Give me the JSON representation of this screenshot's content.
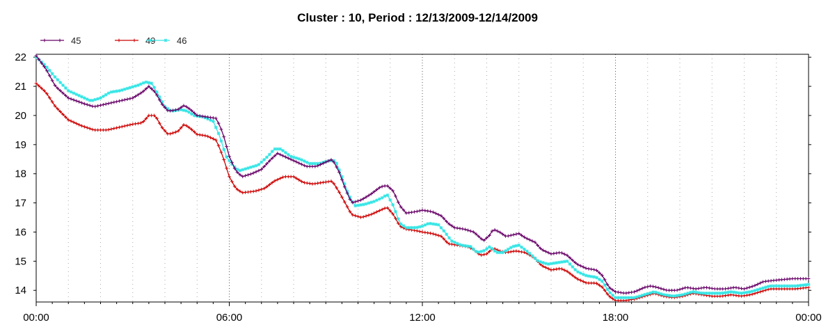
{
  "chart_data": {
    "type": "line",
    "title": "Cluster : 10, Period : 12/13/2009-12/14/2009",
    "xlabel": "",
    "ylabel": "",
    "x_range_hours": [
      0,
      24
    ],
    "x_ticks": [
      {
        "hour": 0,
        "label": "00:00"
      },
      {
        "hour": 6,
        "label": "06:00"
      },
      {
        "hour": 12,
        "label": "12:00"
      },
      {
        "hour": 18,
        "label": "18:00"
      },
      {
        "hour": 24,
        "label": "00:00"
      }
    ],
    "ylim": [
      13.6,
      22.1
    ],
    "y_ticks": [
      14,
      15,
      16,
      17,
      18,
      19,
      20,
      21,
      22
    ],
    "grid": "dotted",
    "legend_position": "top-left",
    "series": [
      {
        "name": "45",
        "color": "#660066",
        "marker": "plus",
        "points": [
          [
            0,
            22.05
          ],
          [
            0.3,
            21.6
          ],
          [
            0.6,
            21.0
          ],
          [
            1.0,
            20.6
          ],
          [
            1.5,
            20.4
          ],
          [
            1.8,
            20.3
          ],
          [
            2.2,
            20.4
          ],
          [
            2.6,
            20.5
          ],
          [
            3.0,
            20.6
          ],
          [
            3.3,
            20.8
          ],
          [
            3.5,
            21.0
          ],
          [
            3.7,
            20.8
          ],
          [
            3.9,
            20.4
          ],
          [
            4.1,
            20.15
          ],
          [
            4.4,
            20.2
          ],
          [
            4.6,
            20.35
          ],
          [
            4.8,
            20.2
          ],
          [
            5.0,
            20.0
          ],
          [
            5.3,
            19.95
          ],
          [
            5.6,
            19.9
          ],
          [
            5.8,
            19.4
          ],
          [
            6.0,
            18.6
          ],
          [
            6.2,
            18.1
          ],
          [
            6.4,
            17.9
          ],
          [
            6.7,
            18.0
          ],
          [
            7.0,
            18.15
          ],
          [
            7.3,
            18.5
          ],
          [
            7.5,
            18.7
          ],
          [
            7.8,
            18.55
          ],
          [
            8.1,
            18.4
          ],
          [
            8.4,
            18.25
          ],
          [
            8.7,
            18.25
          ],
          [
            9.0,
            18.4
          ],
          [
            9.2,
            18.5
          ],
          [
            9.4,
            18.1
          ],
          [
            9.6,
            17.5
          ],
          [
            9.8,
            17.0
          ],
          [
            10.1,
            17.1
          ],
          [
            10.4,
            17.3
          ],
          [
            10.7,
            17.55
          ],
          [
            10.9,
            17.6
          ],
          [
            11.1,
            17.4
          ],
          [
            11.3,
            16.9
          ],
          [
            11.5,
            16.65
          ],
          [
            11.8,
            16.7
          ],
          [
            12.0,
            16.75
          ],
          [
            12.3,
            16.7
          ],
          [
            12.6,
            16.55
          ],
          [
            12.8,
            16.3
          ],
          [
            13.0,
            16.15
          ],
          [
            13.3,
            16.1
          ],
          [
            13.6,
            16.0
          ],
          [
            13.8,
            15.8
          ],
          [
            13.9,
            15.7
          ],
          [
            14.1,
            15.9
          ],
          [
            14.2,
            16.1
          ],
          [
            14.4,
            16.0
          ],
          [
            14.6,
            15.85
          ],
          [
            14.8,
            15.9
          ],
          [
            15.0,
            15.95
          ],
          [
            15.2,
            15.8
          ],
          [
            15.5,
            15.65
          ],
          [
            15.7,
            15.4
          ],
          [
            16.0,
            15.25
          ],
          [
            16.3,
            15.3
          ],
          [
            16.5,
            15.2
          ],
          [
            16.8,
            14.9
          ],
          [
            17.1,
            14.75
          ],
          [
            17.4,
            14.7
          ],
          [
            17.6,
            14.5
          ],
          [
            17.8,
            14.1
          ],
          [
            18.0,
            13.95
          ],
          [
            18.3,
            13.9
          ],
          [
            18.6,
            13.95
          ],
          [
            18.9,
            14.1
          ],
          [
            19.1,
            14.15
          ],
          [
            19.3,
            14.1
          ],
          [
            19.6,
            14.0
          ],
          [
            19.9,
            14.0
          ],
          [
            20.2,
            14.1
          ],
          [
            20.5,
            14.05
          ],
          [
            20.8,
            14.1
          ],
          [
            21.1,
            14.05
          ],
          [
            21.4,
            14.05
          ],
          [
            21.7,
            14.1
          ],
          [
            22.0,
            14.05
          ],
          [
            22.3,
            14.15
          ],
          [
            22.6,
            14.3
          ],
          [
            23.0,
            14.35
          ],
          [
            23.5,
            14.4
          ],
          [
            24.0,
            14.4
          ]
        ]
      },
      {
        "name": "49",
        "color": "#cc0000",
        "marker": "plus",
        "points": [
          [
            0,
            21.1
          ],
          [
            0.3,
            20.8
          ],
          [
            0.6,
            20.3
          ],
          [
            1.0,
            19.85
          ],
          [
            1.4,
            19.65
          ],
          [
            1.8,
            19.5
          ],
          [
            2.2,
            19.5
          ],
          [
            2.6,
            19.6
          ],
          [
            3.0,
            19.7
          ],
          [
            3.3,
            19.75
          ],
          [
            3.5,
            20.0
          ],
          [
            3.7,
            20.0
          ],
          [
            3.9,
            19.6
          ],
          [
            4.1,
            19.35
          ],
          [
            4.4,
            19.45
          ],
          [
            4.6,
            19.7
          ],
          [
            4.8,
            19.55
          ],
          [
            5.0,
            19.35
          ],
          [
            5.3,
            19.3
          ],
          [
            5.6,
            19.15
          ],
          [
            5.8,
            18.6
          ],
          [
            6.0,
            17.9
          ],
          [
            6.2,
            17.5
          ],
          [
            6.4,
            17.35
          ],
          [
            6.8,
            17.4
          ],
          [
            7.1,
            17.5
          ],
          [
            7.4,
            17.75
          ],
          [
            7.7,
            17.9
          ],
          [
            8.0,
            17.9
          ],
          [
            8.3,
            17.7
          ],
          [
            8.6,
            17.65
          ],
          [
            8.9,
            17.7
          ],
          [
            9.2,
            17.75
          ],
          [
            9.4,
            17.4
          ],
          [
            9.6,
            17.0
          ],
          [
            9.8,
            16.6
          ],
          [
            10.1,
            16.5
          ],
          [
            10.4,
            16.6
          ],
          [
            10.7,
            16.75
          ],
          [
            10.9,
            16.85
          ],
          [
            11.1,
            16.6
          ],
          [
            11.3,
            16.2
          ],
          [
            11.5,
            16.1
          ],
          [
            11.8,
            16.05
          ],
          [
            12.0,
            16.0
          ],
          [
            12.3,
            15.95
          ],
          [
            12.6,
            15.85
          ],
          [
            12.8,
            15.6
          ],
          [
            13.1,
            15.55
          ],
          [
            13.4,
            15.5
          ],
          [
            13.6,
            15.4
          ],
          [
            13.8,
            15.2
          ],
          [
            14.0,
            15.25
          ],
          [
            14.2,
            15.45
          ],
          [
            14.4,
            15.35
          ],
          [
            14.6,
            15.3
          ],
          [
            14.9,
            15.35
          ],
          [
            15.2,
            15.3
          ],
          [
            15.5,
            15.1
          ],
          [
            15.7,
            14.85
          ],
          [
            16.0,
            14.7
          ],
          [
            16.3,
            14.75
          ],
          [
            16.5,
            14.65
          ],
          [
            16.8,
            14.4
          ],
          [
            17.1,
            14.25
          ],
          [
            17.4,
            14.25
          ],
          [
            17.6,
            14.1
          ],
          [
            17.8,
            13.8
          ],
          [
            18.0,
            13.65
          ],
          [
            18.3,
            13.65
          ],
          [
            18.6,
            13.7
          ],
          [
            18.9,
            13.8
          ],
          [
            19.2,
            13.9
          ],
          [
            19.5,
            13.8
          ],
          [
            19.8,
            13.75
          ],
          [
            20.1,
            13.8
          ],
          [
            20.4,
            13.9
          ],
          [
            20.7,
            13.85
          ],
          [
            21.0,
            13.8
          ],
          [
            21.3,
            13.8
          ],
          [
            21.6,
            13.85
          ],
          [
            21.9,
            13.8
          ],
          [
            22.2,
            13.85
          ],
          [
            22.5,
            13.95
          ],
          [
            22.8,
            14.05
          ],
          [
            23.2,
            14.05
          ],
          [
            23.6,
            14.05
          ],
          [
            24.0,
            14.1
          ]
        ]
      },
      {
        "name": "46",
        "color": "#33e5e5",
        "marker": "star",
        "points": [
          [
            0,
            22.0
          ],
          [
            0.3,
            21.7
          ],
          [
            0.6,
            21.3
          ],
          [
            1.0,
            20.85
          ],
          [
            1.4,
            20.65
          ],
          [
            1.7,
            20.5
          ],
          [
            2.0,
            20.6
          ],
          [
            2.3,
            20.8
          ],
          [
            2.6,
            20.85
          ],
          [
            2.9,
            20.95
          ],
          [
            3.2,
            21.05
          ],
          [
            3.4,
            21.15
          ],
          [
            3.6,
            21.1
          ],
          [
            3.8,
            20.7
          ],
          [
            4.0,
            20.3
          ],
          [
            4.2,
            20.15
          ],
          [
            4.5,
            20.2
          ],
          [
            4.7,
            20.15
          ],
          [
            4.9,
            20.0
          ],
          [
            5.2,
            19.95
          ],
          [
            5.5,
            19.8
          ],
          [
            5.7,
            19.3
          ],
          [
            5.9,
            18.6
          ],
          [
            6.1,
            18.3
          ],
          [
            6.3,
            18.1
          ],
          [
            6.6,
            18.2
          ],
          [
            6.9,
            18.3
          ],
          [
            7.2,
            18.6
          ],
          [
            7.4,
            18.85
          ],
          [
            7.6,
            18.85
          ],
          [
            7.9,
            18.6
          ],
          [
            8.2,
            18.5
          ],
          [
            8.5,
            18.35
          ],
          [
            8.8,
            18.35
          ],
          [
            9.1,
            18.45
          ],
          [
            9.3,
            18.45
          ],
          [
            9.5,
            17.9
          ],
          [
            9.7,
            17.3
          ],
          [
            9.9,
            16.9
          ],
          [
            10.2,
            16.95
          ],
          [
            10.5,
            17.05
          ],
          [
            10.8,
            17.2
          ],
          [
            10.9,
            17.3
          ],
          [
            11.1,
            16.9
          ],
          [
            11.3,
            16.3
          ],
          [
            11.5,
            16.15
          ],
          [
            11.8,
            16.15
          ],
          [
            12.0,
            16.2
          ],
          [
            12.2,
            16.3
          ],
          [
            12.5,
            16.25
          ],
          [
            12.7,
            16.0
          ],
          [
            12.9,
            15.7
          ],
          [
            13.2,
            15.55
          ],
          [
            13.5,
            15.5
          ],
          [
            13.7,
            15.3
          ],
          [
            13.9,
            15.35
          ],
          [
            14.1,
            15.5
          ],
          [
            14.3,
            15.3
          ],
          [
            14.5,
            15.3
          ],
          [
            14.8,
            15.5
          ],
          [
            15.0,
            15.55
          ],
          [
            15.3,
            15.3
          ],
          [
            15.6,
            15.0
          ],
          [
            15.9,
            14.9
          ],
          [
            16.2,
            14.95
          ],
          [
            16.5,
            15.0
          ],
          [
            16.8,
            14.65
          ],
          [
            17.1,
            14.5
          ],
          [
            17.4,
            14.45
          ],
          [
            17.6,
            14.3
          ],
          [
            17.8,
            13.95
          ],
          [
            18.0,
            13.75
          ],
          [
            18.3,
            13.75
          ],
          [
            18.6,
            13.75
          ],
          [
            18.9,
            13.85
          ],
          [
            19.2,
            13.95
          ],
          [
            19.5,
            13.85
          ],
          [
            19.8,
            13.8
          ],
          [
            20.1,
            13.85
          ],
          [
            20.4,
            13.95
          ],
          [
            20.7,
            13.9
          ],
          [
            21.0,
            13.9
          ],
          [
            21.3,
            13.9
          ],
          [
            21.6,
            13.95
          ],
          [
            21.9,
            13.9
          ],
          [
            22.2,
            13.95
          ],
          [
            22.5,
            14.05
          ],
          [
            22.8,
            14.15
          ],
          [
            23.2,
            14.15
          ],
          [
            23.6,
            14.15
          ],
          [
            24.0,
            14.2
          ]
        ]
      }
    ]
  }
}
